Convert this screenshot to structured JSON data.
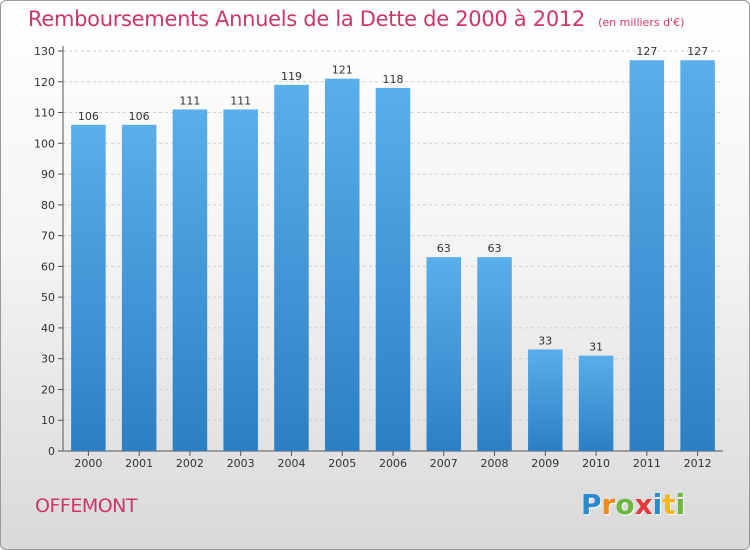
{
  "chart_data": {
    "type": "bar",
    "title": "Remboursements Annuels de la Dette de 2000 à 2012",
    "unit_note": "(en milliers d'€)",
    "categories": [
      "2000",
      "2001",
      "2002",
      "2003",
      "2004",
      "2005",
      "2006",
      "2007",
      "2008",
      "2009",
      "2010",
      "2011",
      "2012"
    ],
    "values": [
      106,
      106,
      111,
      111,
      119,
      121,
      118,
      63,
      63,
      33,
      31,
      127,
      127
    ],
    "y_ticks": [
      0,
      10,
      20,
      30,
      40,
      50,
      60,
      70,
      80,
      90,
      100,
      110,
      120,
      130
    ],
    "ylim": [
      0,
      130
    ],
    "grid": true,
    "bar_color": "#4a9fe0",
    "xlabel": "",
    "ylabel": ""
  },
  "footer": {
    "town": "OFFEMONT",
    "brand_letters": [
      {
        "ch": "P",
        "color": "#2a8ad0"
      },
      {
        "ch": "r",
        "color": "#f08a1c"
      },
      {
        "ch": "o",
        "color": "#6cb83a"
      },
      {
        "ch": "x",
        "color": "#e23a3a"
      },
      {
        "ch": "i",
        "color": "#2a8ad0"
      },
      {
        "ch": "t",
        "color": "#f0b81c"
      },
      {
        "ch": "i",
        "color": "#6cb83a"
      }
    ]
  }
}
